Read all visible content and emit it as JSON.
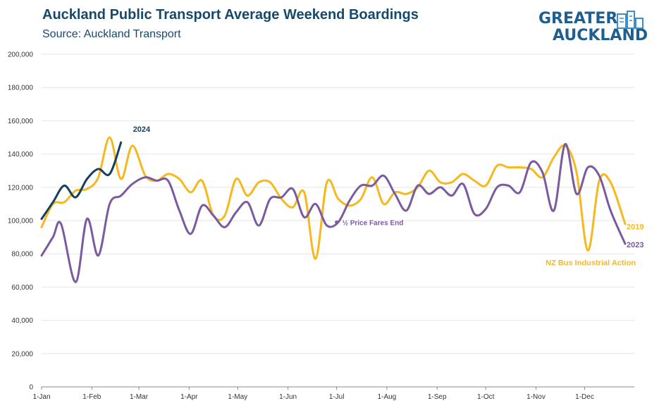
{
  "title": "Auckland Public Transport Average Weekend Boardings",
  "subtitle": "Source: Auckland Transport",
  "logo": {
    "line1": "GREATER",
    "line2": "AUCKLAND"
  },
  "colors": {
    "s2024": "#17405e",
    "s2019": "#f5b91d",
    "s2023": "#7a5aa0",
    "title": "#17496b"
  },
  "chart_data": {
    "type": "line",
    "title": "Auckland Public Transport Average Weekend Boardings",
    "subtitle": "Source: Auckland Transport",
    "xlabel": "",
    "ylabel": "",
    "x_tick_labels": [
      "1-Jan",
      "1-Feb",
      "1-Mar",
      "1-Apr",
      "1-May",
      "1-Jun",
      "1-Jul",
      "1-Aug",
      "1-Sep",
      "1-Oct",
      "1-Nov",
      "1-Dec"
    ],
    "y_tick_labels": [
      "0",
      "20,000",
      "40,000",
      "60,000",
      "80,000",
      "100,000",
      "120,000",
      "140,000",
      "160,000",
      "180,000",
      "200,000"
    ],
    "ylim": [
      0,
      200000
    ],
    "xlim": [
      "2024-01-01",
      "2024-12-31"
    ],
    "grid": true,
    "annotations": [
      {
        "text": "½ Price Fares End",
        "x": "2024-07-01",
        "y": 99000,
        "color": "#7a5aa0"
      },
      {
        "text": "NZ Bus Industrial Action",
        "x": "2024-12-03",
        "y": 73000,
        "color": "#f5b91d"
      }
    ],
    "series": [
      {
        "name": "2024",
        "color": "#17405e",
        "points": [
          [
            "2024-01-01",
            101000
          ],
          [
            "2024-01-08",
            111000
          ],
          [
            "2024-01-15",
            121000
          ],
          [
            "2024-01-22",
            114000
          ],
          [
            "2024-01-29",
            125000
          ],
          [
            "2024-02-05",
            131000
          ],
          [
            "2024-02-12",
            128000
          ],
          [
            "2024-02-19",
            147000
          ]
        ]
      },
      {
        "name": "2019",
        "color": "#f5b91d",
        "points": [
          [
            "2024-01-01",
            96000
          ],
          [
            "2024-01-08",
            110000
          ],
          [
            "2024-01-15",
            111000
          ],
          [
            "2024-01-22",
            118000
          ],
          [
            "2024-01-29",
            119000
          ],
          [
            "2024-02-05",
            126000
          ],
          [
            "2024-02-12",
            150000
          ],
          [
            "2024-02-19",
            125000
          ],
          [
            "2024-02-26",
            145000
          ],
          [
            "2024-03-05",
            127000
          ],
          [
            "2024-03-12",
            124000
          ],
          [
            "2024-03-19",
            128000
          ],
          [
            "2024-03-26",
            125000
          ],
          [
            "2024-04-02",
            117000
          ],
          [
            "2024-04-09",
            124000
          ],
          [
            "2024-04-16",
            103000
          ],
          [
            "2024-04-23",
            103000
          ],
          [
            "2024-04-30",
            125000
          ],
          [
            "2024-05-07",
            115000
          ],
          [
            "2024-05-14",
            123000
          ],
          [
            "2024-05-21",
            123000
          ],
          [
            "2024-05-28",
            113000
          ],
          [
            "2024-06-04",
            108000
          ],
          [
            "2024-06-11",
            117000
          ],
          [
            "2024-06-18",
            77000
          ],
          [
            "2024-06-25",
            123000
          ],
          [
            "2024-07-02",
            113000
          ],
          [
            "2024-07-09",
            109000
          ],
          [
            "2024-07-16",
            113000
          ],
          [
            "2024-07-23",
            126000
          ],
          [
            "2024-07-30",
            110000
          ],
          [
            "2024-08-06",
            117000
          ],
          [
            "2024-08-13",
            116000
          ],
          [
            "2024-08-20",
            120000
          ],
          [
            "2024-08-27",
            130000
          ],
          [
            "2024-09-03",
            123000
          ],
          [
            "2024-09-10",
            123000
          ],
          [
            "2024-09-17",
            128000
          ],
          [
            "2024-09-24",
            124000
          ],
          [
            "2024-10-01",
            121000
          ],
          [
            "2024-10-08",
            133000
          ],
          [
            "2024-10-15",
            132000
          ],
          [
            "2024-10-22",
            132000
          ],
          [
            "2024-10-29",
            131000
          ],
          [
            "2024-11-05",
            126000
          ],
          [
            "2024-11-12",
            138000
          ],
          [
            "2024-11-19",
            145000
          ],
          [
            "2024-11-26",
            129000
          ],
          [
            "2024-12-03",
            82000
          ],
          [
            "2024-12-10",
            124000
          ],
          [
            "2024-12-17",
            123000
          ],
          [
            "2024-12-26",
            98000
          ]
        ]
      },
      {
        "name": "2023",
        "color": "#7a5aa0",
        "points": [
          [
            "2024-01-01",
            79000
          ],
          [
            "2024-01-08",
            90000
          ],
          [
            "2024-01-13",
            98000
          ],
          [
            "2024-01-22",
            63000
          ],
          [
            "2024-01-29",
            101000
          ],
          [
            "2024-02-05",
            79000
          ],
          [
            "2024-02-12",
            110000
          ],
          [
            "2024-02-19",
            115000
          ],
          [
            "2024-02-26",
            122000
          ],
          [
            "2024-03-05",
            126000
          ],
          [
            "2024-03-12",
            124000
          ],
          [
            "2024-03-19",
            124000
          ],
          [
            "2024-03-26",
            106000
          ],
          [
            "2024-04-02",
            92000
          ],
          [
            "2024-04-09",
            109000
          ],
          [
            "2024-04-16",
            103000
          ],
          [
            "2024-04-23",
            96000
          ],
          [
            "2024-04-30",
            105000
          ],
          [
            "2024-05-07",
            111000
          ],
          [
            "2024-05-14",
            97000
          ],
          [
            "2024-05-21",
            113000
          ],
          [
            "2024-05-28",
            114000
          ],
          [
            "2024-06-04",
            119000
          ],
          [
            "2024-06-11",
            102000
          ],
          [
            "2024-06-18",
            110000
          ],
          [
            "2024-06-25",
            97000
          ],
          [
            "2024-07-02",
            99000
          ],
          [
            "2024-07-09",
            112000
          ],
          [
            "2024-07-16",
            121000
          ],
          [
            "2024-07-23",
            121000
          ],
          [
            "2024-07-30",
            127000
          ],
          [
            "2024-08-06",
            116000
          ],
          [
            "2024-08-13",
            106000
          ],
          [
            "2024-08-20",
            121000
          ],
          [
            "2024-08-27",
            116000
          ],
          [
            "2024-09-03",
            120000
          ],
          [
            "2024-09-10",
            115000
          ],
          [
            "2024-09-17",
            122000
          ],
          [
            "2024-09-24",
            104000
          ],
          [
            "2024-10-01",
            107000
          ],
          [
            "2024-10-08",
            120000
          ],
          [
            "2024-10-15",
            121000
          ],
          [
            "2024-10-22",
            117000
          ],
          [
            "2024-10-29",
            135000
          ],
          [
            "2024-11-05",
            129000
          ],
          [
            "2024-11-12",
            106000
          ],
          [
            "2024-11-19",
            146000
          ],
          [
            "2024-11-26",
            116000
          ],
          [
            "2024-12-03",
            132000
          ],
          [
            "2024-12-10",
            127000
          ],
          [
            "2024-12-17",
            106000
          ],
          [
            "2024-12-26",
            86000
          ]
        ]
      }
    ]
  }
}
